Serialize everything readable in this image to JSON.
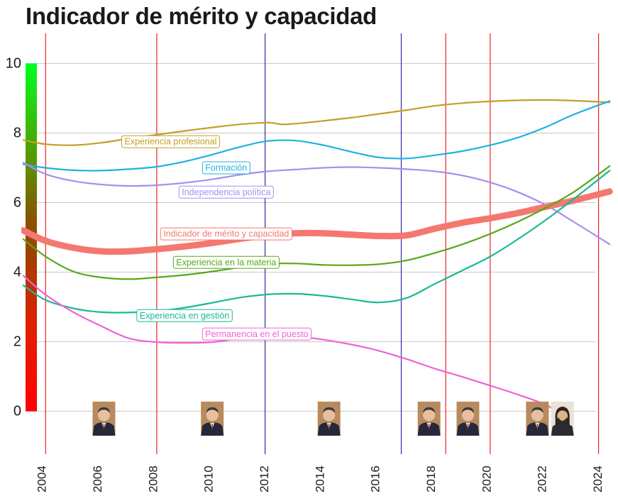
{
  "chart_data": {
    "type": "line",
    "title": "Indicador de mérito y capacidad",
    "xlabel": "",
    "ylabel": "",
    "xlim": [
      2003.1,
      2024.6
    ],
    "ylim": [
      -1.7,
      10.6
    ],
    "y_ticks": [
      0,
      2,
      4,
      6,
      8,
      10
    ],
    "x_ticks": [
      2004,
      2006,
      2008,
      2010,
      2012,
      2014,
      2016,
      2018,
      2020,
      2022,
      2024
    ],
    "grid": "horizontal",
    "legend": "none",
    "color_scale": {
      "bottom": "#ff0000",
      "top": "#00ff22",
      "min": 0,
      "max": 10
    },
    "government_changes": [
      {
        "x": 2004.0,
        "color": "#ee2222"
      },
      {
        "x": 2008.0,
        "color": "#ee2222"
      },
      {
        "x": 2011.9,
        "color": "#2a2aa8"
      },
      {
        "x": 2016.8,
        "color": "#2a2aa8"
      },
      {
        "x": 2018.4,
        "color": "#ee2222"
      },
      {
        "x": 2020.0,
        "color": "#ee2222"
      },
      {
        "x": 2023.9,
        "color": "#ee2222"
      }
    ],
    "portraits": [
      {
        "x": 2006.1,
        "icon": "portrait-suit-icon"
      },
      {
        "x": 2010.0,
        "icon": "portrait-suit-icon"
      },
      {
        "x": 2014.2,
        "icon": "portrait-suit-icon"
      },
      {
        "x": 2017.8,
        "icon": "portrait-suit-icon"
      },
      {
        "x": 2019.2,
        "icon": "portrait-suit-icon"
      },
      {
        "x": 2021.7,
        "icon": "portrait-suit-icon"
      },
      {
        "x": 2022.6,
        "icon": "portrait-longhair-icon"
      }
    ],
    "series": [
      {
        "name": "Experiencia profesional",
        "color": "#c2a026",
        "width": 2.2,
        "label_at": [
          2008.5,
          7.75
        ],
        "points": [
          [
            2003.2,
            7.8
          ],
          [
            2004,
            7.68
          ],
          [
            2005,
            7.65
          ],
          [
            2006,
            7.72
          ],
          [
            2007,
            7.84
          ],
          [
            2008,
            7.95
          ],
          [
            2009,
            8.06
          ],
          [
            2010,
            8.16
          ],
          [
            2011,
            8.25
          ],
          [
            2012,
            8.3
          ],
          [
            2012.5,
            8.25
          ],
          [
            2013,
            8.27
          ],
          [
            2014,
            8.35
          ],
          [
            2015,
            8.44
          ],
          [
            2016,
            8.55
          ],
          [
            2017,
            8.66
          ],
          [
            2018,
            8.78
          ],
          [
            2019,
            8.86
          ],
          [
            2020,
            8.91
          ],
          [
            2021,
            8.94
          ],
          [
            2022,
            8.95
          ],
          [
            2023,
            8.93
          ],
          [
            2024.3,
            8.88
          ]
        ]
      },
      {
        "name": "Formación",
        "color": "#1fb2e0",
        "width": 2.2,
        "label_at": [
          2010.5,
          7.0
        ],
        "points": [
          [
            2003.2,
            7.1
          ],
          [
            2004,
            7.0
          ],
          [
            2005,
            6.93
          ],
          [
            2006,
            6.92
          ],
          [
            2007,
            6.96
          ],
          [
            2008,
            7.03
          ],
          [
            2009,
            7.18
          ],
          [
            2010,
            7.38
          ],
          [
            2011,
            7.6
          ],
          [
            2012,
            7.77
          ],
          [
            2013,
            7.78
          ],
          [
            2014,
            7.65
          ],
          [
            2015,
            7.46
          ],
          [
            2016,
            7.3
          ],
          [
            2017,
            7.27
          ],
          [
            2018,
            7.36
          ],
          [
            2019,
            7.48
          ],
          [
            2020,
            7.65
          ],
          [
            2021,
            7.87
          ],
          [
            2022,
            8.17
          ],
          [
            2023,
            8.53
          ],
          [
            2024.3,
            8.92
          ]
        ]
      },
      {
        "name": "Independencia política",
        "color": "#a68ff0",
        "width": 2.2,
        "label_at": [
          2010.5,
          6.3
        ],
        "points": [
          [
            2003.2,
            7.15
          ],
          [
            2004,
            6.82
          ],
          [
            2005,
            6.62
          ],
          [
            2006,
            6.52
          ],
          [
            2007,
            6.48
          ],
          [
            2008,
            6.5
          ],
          [
            2009,
            6.57
          ],
          [
            2010,
            6.67
          ],
          [
            2011,
            6.8
          ],
          [
            2012,
            6.9
          ],
          [
            2013,
            6.95
          ],
          [
            2014,
            7.0
          ],
          [
            2015,
            7.02
          ],
          [
            2016,
            7.0
          ],
          [
            2017,
            6.96
          ],
          [
            2018,
            6.9
          ],
          [
            2019,
            6.78
          ],
          [
            2020,
            6.58
          ],
          [
            2021,
            6.3
          ],
          [
            2022,
            5.93
          ],
          [
            2023,
            5.45
          ],
          [
            2024.3,
            4.8
          ]
        ]
      },
      {
        "name": "Indicador de mérito y capacidad",
        "color": "#f47870",
        "width": 9,
        "label_at": [
          2010.5,
          5.1
        ],
        "points": [
          [
            2003.2,
            5.2
          ],
          [
            2004,
            4.9
          ],
          [
            2005,
            4.7
          ],
          [
            2006,
            4.6
          ],
          [
            2007,
            4.6
          ],
          [
            2008,
            4.66
          ],
          [
            2009,
            4.74
          ],
          [
            2010,
            4.84
          ],
          [
            2011,
            4.96
          ],
          [
            2012,
            5.06
          ],
          [
            2013,
            5.12
          ],
          [
            2014,
            5.12
          ],
          [
            2015,
            5.08
          ],
          [
            2016,
            5.04
          ],
          [
            2017,
            5.06
          ],
          [
            2018,
            5.25
          ],
          [
            2019,
            5.42
          ],
          [
            2020,
            5.55
          ],
          [
            2021,
            5.7
          ],
          [
            2022,
            5.88
          ],
          [
            2023,
            6.06
          ],
          [
            2024.3,
            6.32
          ]
        ]
      },
      {
        "name": "Experiencia en la materia",
        "color": "#56a818",
        "width": 2.2,
        "label_at": [
          2010.5,
          4.28
        ],
        "points": [
          [
            2003.2,
            4.95
          ],
          [
            2004,
            4.45
          ],
          [
            2005,
            4.02
          ],
          [
            2006,
            3.85
          ],
          [
            2007,
            3.8
          ],
          [
            2008,
            3.85
          ],
          [
            2009,
            3.92
          ],
          [
            2010,
            4.02
          ],
          [
            2011,
            4.14
          ],
          [
            2012,
            4.24
          ],
          [
            2013,
            4.25
          ],
          [
            2014,
            4.21
          ],
          [
            2015,
            4.2
          ],
          [
            2016,
            4.23
          ],
          [
            2017,
            4.34
          ],
          [
            2018,
            4.55
          ],
          [
            2019,
            4.8
          ],
          [
            2020,
            5.1
          ],
          [
            2021,
            5.45
          ],
          [
            2022,
            5.85
          ],
          [
            2023,
            6.3
          ],
          [
            2024.3,
            7.05
          ]
        ]
      },
      {
        "name": "Experiencia en gestión",
        "color": "#1ab896",
        "width": 2.2,
        "label_at": [
          2009.0,
          2.75
        ],
        "points": [
          [
            2003.2,
            3.62
          ],
          [
            2004,
            3.2
          ],
          [
            2005,
            2.96
          ],
          [
            2006,
            2.85
          ],
          [
            2007,
            2.84
          ],
          [
            2008,
            2.88
          ],
          [
            2009,
            2.98
          ],
          [
            2010,
            3.12
          ],
          [
            2011,
            3.27
          ],
          [
            2012,
            3.36
          ],
          [
            2013,
            3.38
          ],
          [
            2014,
            3.32
          ],
          [
            2015,
            3.22
          ],
          [
            2016,
            3.13
          ],
          [
            2017,
            3.26
          ],
          [
            2018,
            3.66
          ],
          [
            2019,
            4.05
          ],
          [
            2020,
            4.45
          ],
          [
            2021,
            4.95
          ],
          [
            2022,
            5.5
          ],
          [
            2023,
            6.1
          ],
          [
            2024.3,
            6.92
          ]
        ]
      },
      {
        "name": "Permanencia en el puesto",
        "color": "#f062d2",
        "width": 2.2,
        "label_at": [
          2011.6,
          2.22
        ],
        "points": [
          [
            2003.2,
            3.9
          ],
          [
            2004,
            3.35
          ],
          [
            2005,
            2.85
          ],
          [
            2006,
            2.45
          ],
          [
            2007,
            2.1
          ],
          [
            2008,
            1.99
          ],
          [
            2009,
            1.97
          ],
          [
            2010,
            1.99
          ],
          [
            2011,
            2.1
          ],
          [
            2012,
            2.2
          ],
          [
            2013,
            2.16
          ],
          [
            2014,
            2.06
          ],
          [
            2015,
            1.92
          ],
          [
            2016,
            1.74
          ],
          [
            2017,
            1.5
          ],
          [
            2018,
            1.23
          ],
          [
            2019,
            0.99
          ],
          [
            2020,
            0.74
          ],
          [
            2021,
            0.48
          ],
          [
            2022,
            0.19
          ],
          [
            2022.3,
            0.02
          ]
        ]
      }
    ]
  }
}
